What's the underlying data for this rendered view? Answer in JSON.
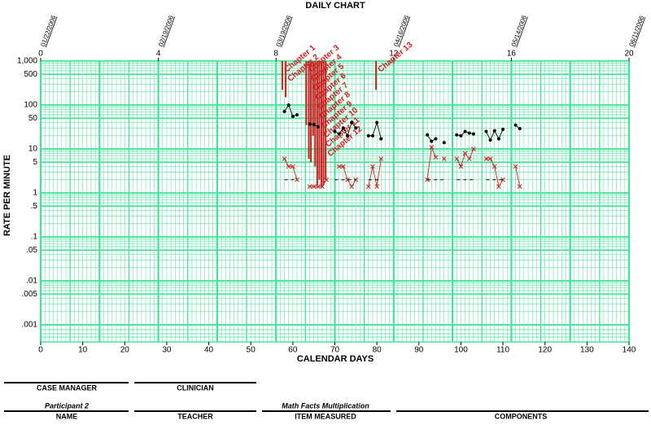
{
  "chart_data": {
    "type": "celeration",
    "title": "DAILY CHART",
    "xlabel": "CALENDAR DAYS",
    "ylabel": "RATE PER MINUTE",
    "log_scale": true,
    "grid": true,
    "grid_color": "#45e29a",
    "xlim": [
      0,
      140
    ],
    "xticks": [
      0,
      10,
      20,
      30,
      40,
      50,
      60,
      70,
      80,
      90,
      100,
      110,
      120,
      130,
      140
    ],
    "x2lim": [
      0,
      20
    ],
    "x2ticks": [
      0,
      4,
      8,
      12,
      16,
      20
    ],
    "x2tick_dates": [
      "01/22/2006",
      "02/19/2006",
      "03/19/2006",
      "04/16/2006",
      "05/14/2006",
      "06/11/2006"
    ],
    "ylim": [
      0.001,
      1000
    ],
    "yticks": [
      {
        "value": 1000,
        "label": "1,000"
      },
      500,
      100,
      50,
      10,
      5,
      1,
      {
        "value": 0.5,
        "label": ".5"
      },
      {
        "value": 0.1,
        "label": ".1"
      },
      {
        "value": 0.05,
        "label": ".05"
      },
      {
        "value": 0.01,
        "label": ".01"
      },
      {
        "value": 0.005,
        "label": ".005"
      },
      {
        "value": 0.001,
        "label": ".001"
      }
    ],
    "x": [
      58,
      59,
      60,
      61,
      62,
      64,
      65,
      66,
      67,
      68,
      69,
      70,
      71,
      72,
      73,
      74,
      75,
      76,
      78,
      79,
      80,
      81,
      82,
      92,
      93,
      94,
      95,
      96,
      97,
      99,
      100,
      101,
      102,
      103,
      104,
      106,
      107,
      108,
      109,
      110,
      111,
      113,
      114
    ],
    "series": [
      {
        "color": "#000000",
        "marker": "dot",
        "dashed": false,
        "values": [
          71,
          100,
          55,
          60,
          null,
          37,
          36,
          32,
          null,
          null,
          null,
          25,
          22,
          30,
          20,
          40,
          30,
          null,
          20,
          20,
          40,
          17,
          null,
          21,
          15,
          17,
          null,
          14,
          null,
          21,
          20,
          25,
          23,
          22,
          null,
          25,
          16,
          26,
          17,
          28,
          null,
          35,
          29
        ]
      },
      {
        "color": "#cc2222",
        "marker": "cross",
        "dashed": false,
        "values": [
          6,
          4,
          4,
          2,
          null,
          1.4,
          1.4,
          1.4,
          1.4,
          2,
          null,
          null,
          4,
          4,
          2,
          1.4,
          2,
          null,
          1.4,
          4,
          1.4,
          6,
          null,
          2,
          11,
          6.5,
          null,
          6,
          null,
          6,
          4,
          8,
          6,
          10,
          null,
          6,
          6,
          4,
          1.4,
          2,
          null,
          4,
          1.4
        ]
      },
      {
        "color": "#000000",
        "marker": "none",
        "dashed": true,
        "values": [
          2,
          2,
          2,
          2,
          null,
          null,
          null,
          null,
          null,
          null,
          null,
          2,
          2,
          2,
          2,
          2,
          2,
          null,
          2,
          2,
          2,
          2,
          null,
          2,
          2,
          2,
          2,
          2,
          null,
          2,
          2,
          2,
          2,
          2,
          null,
          2,
          2,
          2,
          2,
          2,
          null,
          null,
          null
        ]
      }
    ],
    "annotation_color": "#cc2222",
    "annotations": [
      {
        "text": "Chapter 1",
        "x": 57.5,
        "bottom": 220
      },
      {
        "text": "Chapter 2",
        "x": 58.3,
        "bottom": 150
      },
      {
        "text": "Chapter 3",
        "x": 63.2,
        "bottom": 35
      },
      {
        "text": "Chapter 4",
        "x": 63.8,
        "bottom": 6
      },
      {
        "text": "Chapter 5",
        "x": 64.3,
        "bottom": 5
      },
      {
        "text": "Chapter 6",
        "x": 64.8,
        "bottom": 20
      },
      {
        "text": "Chapter 7",
        "x": 65.3,
        "bottom": 4
      },
      {
        "text": "Chapter 8",
        "x": 65.8,
        "bottom": 1.5
      },
      {
        "text": "Chapter 9",
        "x": 66.3,
        "bottom": 2
      },
      {
        "text": "Chapter 10",
        "x": 66.8,
        "bottom": 1.4
      },
      {
        "text": "Chapter 11",
        "x": 67.3,
        "bottom": 1.5
      },
      {
        "text": "Chapter 12",
        "x": 67.8,
        "bottom": 2
      },
      {
        "text": "Chapter 13",
        "x": 79.8,
        "bottom": 220
      }
    ]
  },
  "footer": {
    "case_manager": "CASE MANAGER",
    "clinician": "CLINICIAN",
    "participant": "Participant 2",
    "name": "NAME",
    "teacher": "TEACHER",
    "item": "Math Facts Multiplication",
    "item_measured": "ITEM MEASURED",
    "components": "COMPONENTS"
  }
}
